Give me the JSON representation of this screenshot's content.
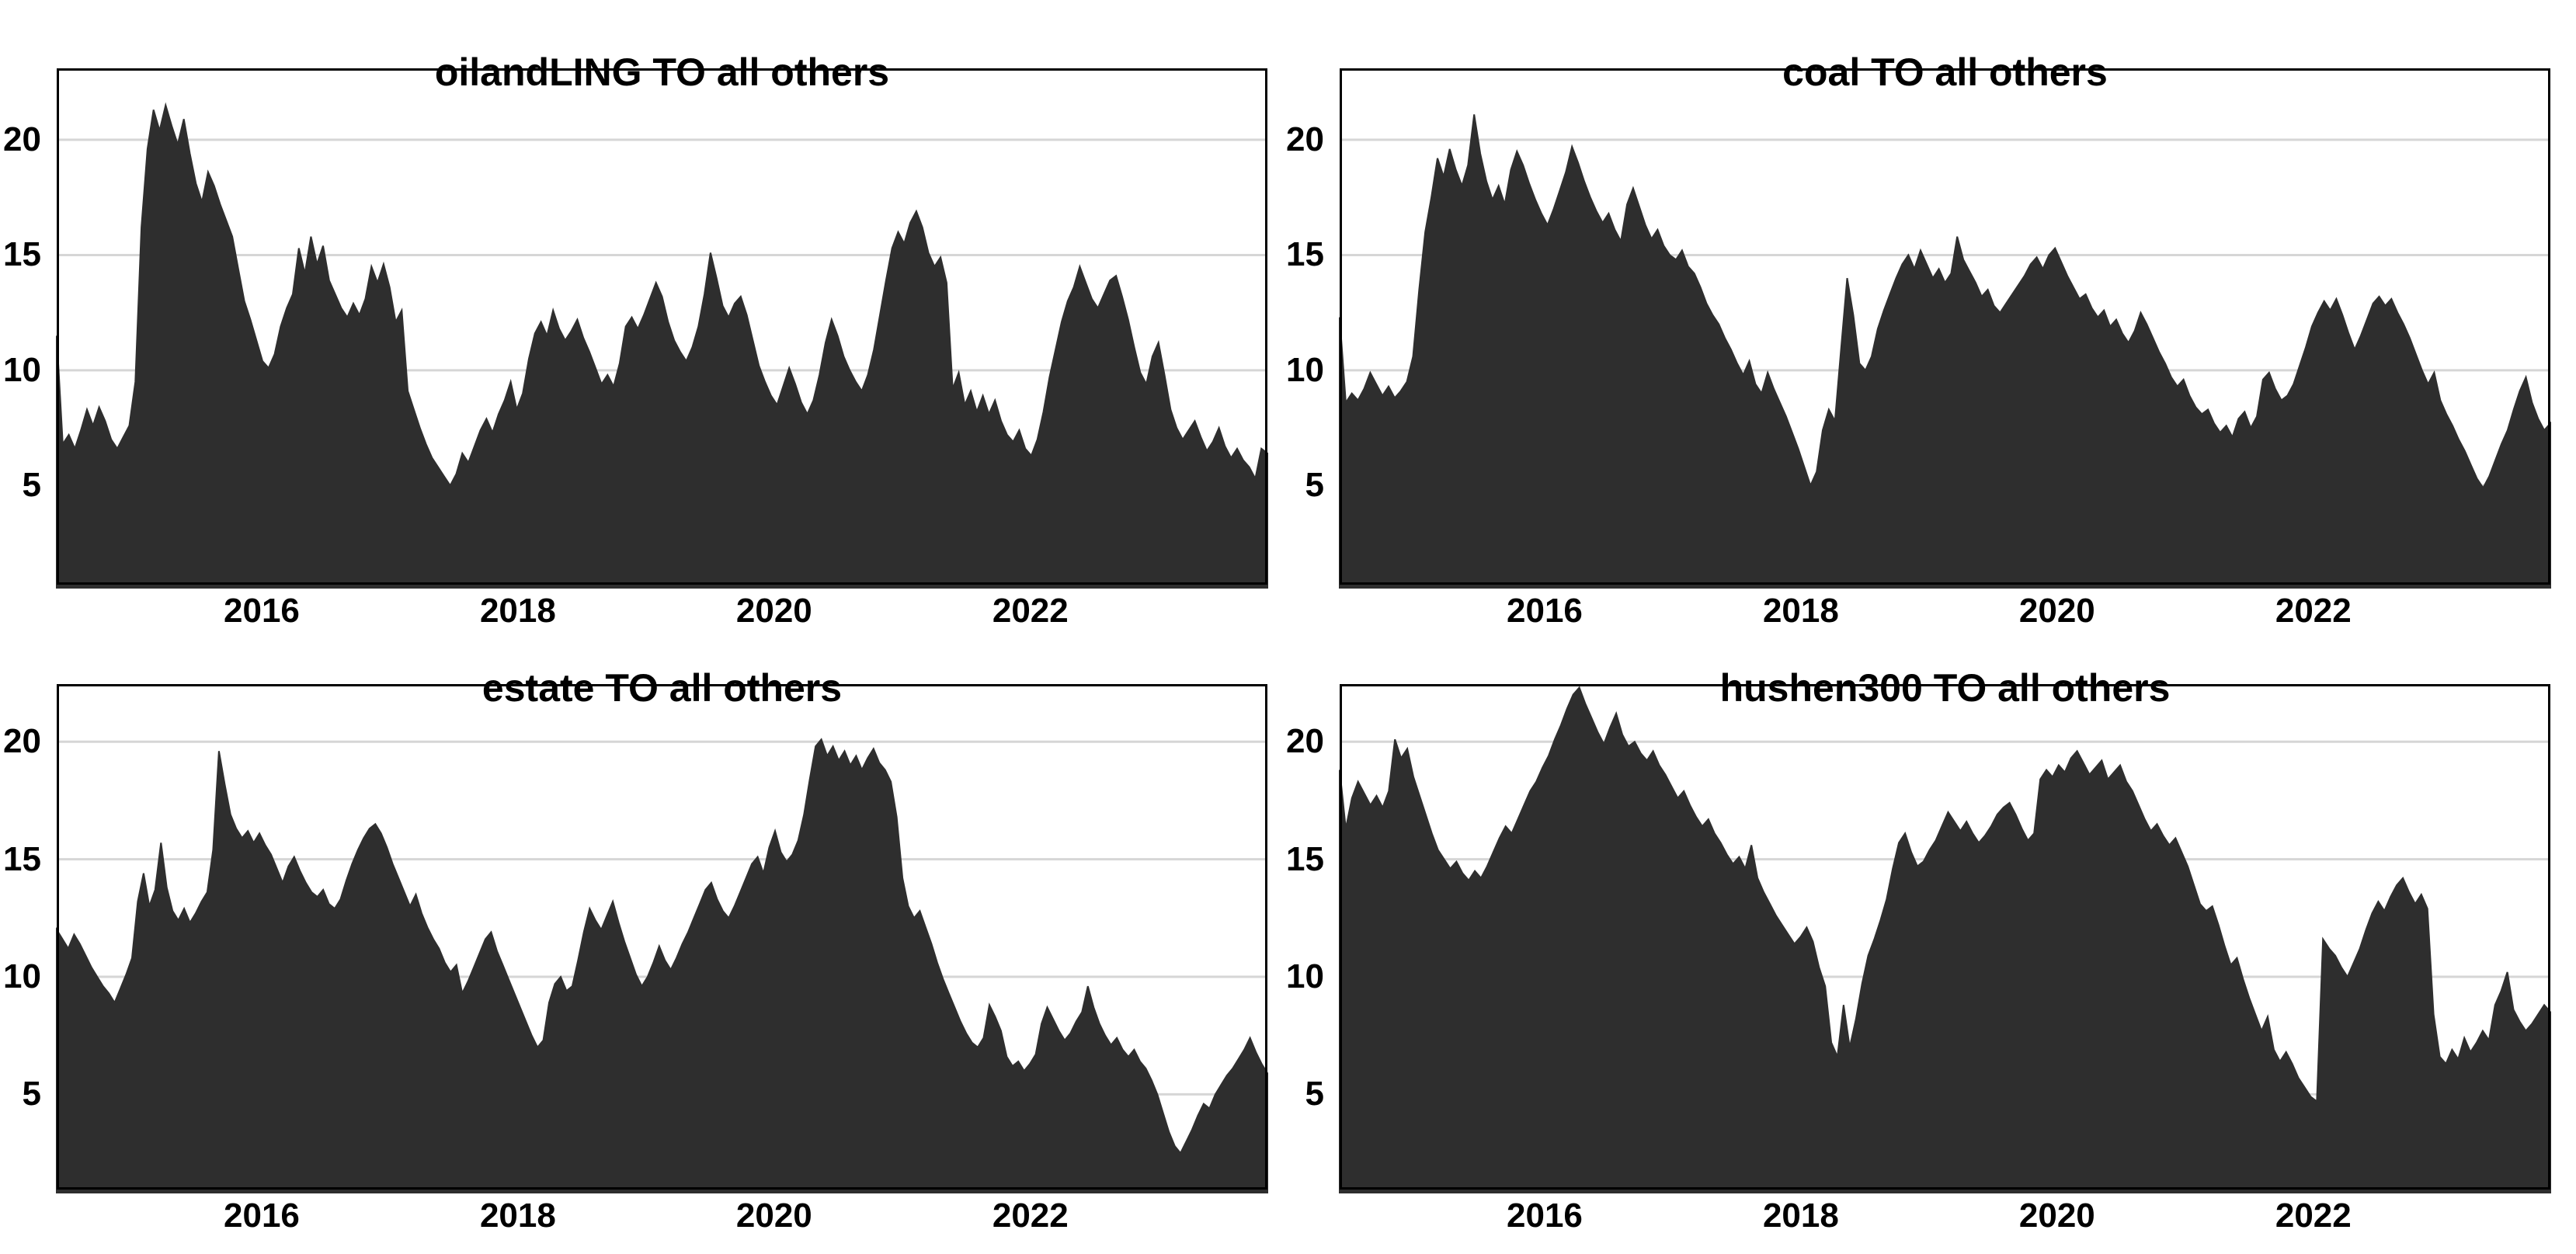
{
  "figure": {
    "background_color": "#ffffff",
    "text_color": "#000000",
    "layout": "2x2-grid"
  },
  "chart_data": [
    {
      "type": "area",
      "title": "oilandLING TO all others",
      "xlabel": "",
      "ylabel": "",
      "x_range": [
        2014.4,
        2023.85
      ],
      "y_range": [
        0.7,
        23.1
      ],
      "x_ticks": [
        2016,
        2018,
        2020,
        2022
      ],
      "x_tick_labels": [
        "2016",
        "2018",
        "2020",
        "2022"
      ],
      "y_ticks": [
        5,
        10,
        15,
        20
      ],
      "y_tick_labels": [
        "5",
        "10",
        "15",
        "20"
      ],
      "grid": "horizontal",
      "legend": "none",
      "fill_color": "#2e2e2e",
      "grid_color": "#d6d6d6",
      "border_color": "#000000",
      "values": [
        11.5,
        6.8,
        7.2,
        6.6,
        7.4,
        8.3,
        7.6,
        8.4,
        7.8,
        7.0,
        6.6,
        7.1,
        7.6,
        9.5,
        16.2,
        19.6,
        21.3,
        20.4,
        21.5,
        20.6,
        19.8,
        20.9,
        19.4,
        18.1,
        17.3,
        18.6,
        18.0,
        17.2,
        16.5,
        15.8,
        14.4,
        13.0,
        12.2,
        11.3,
        10.4,
        10.1,
        10.7,
        11.9,
        12.7,
        13.3,
        15.3,
        14.2,
        15.8,
        14.6,
        15.4,
        13.9,
        13.3,
        12.7,
        12.3,
        12.9,
        12.4,
        13.1,
        14.5,
        13.8,
        14.6,
        13.6,
        12.1,
        12.6,
        9.1,
        8.3,
        7.5,
        6.8,
        6.2,
        5.8,
        5.4,
        5.0,
        5.5,
        6.4,
        6.0,
        6.7,
        7.4,
        7.9,
        7.3,
        8.1,
        8.7,
        9.5,
        8.3,
        9.0,
        10.5,
        11.6,
        12.1,
        11.5,
        12.6,
        11.8,
        11.3,
        11.7,
        12.2,
        11.4,
        10.8,
        10.1,
        9.4,
        9.8,
        9.3,
        10.3,
        11.9,
        12.3,
        11.8,
        12.4,
        13.1,
        13.8,
        13.2,
        12.1,
        11.3,
        10.8,
        10.4,
        11.0,
        11.9,
        13.3,
        15.1,
        14.0,
        12.8,
        12.3,
        12.9,
        13.2,
        12.4,
        11.3,
        10.2,
        9.5,
        8.9,
        8.5,
        9.3,
        10.1,
        9.4,
        8.6,
        8.1,
        8.7,
        9.8,
        11.2,
        12.2,
        11.5,
        10.6,
        10.0,
        9.5,
        9.1,
        9.8,
        10.9,
        12.4,
        13.9,
        15.3,
        16.0,
        15.5,
        16.4,
        16.9,
        16.2,
        15.1,
        14.5,
        14.9,
        13.8,
        9.2,
        9.9,
        8.5,
        9.1,
        8.2,
        8.9,
        8.1,
        8.7,
        7.8,
        7.2,
        6.9,
        7.4,
        6.6,
        6.3,
        7.0,
        8.2,
        9.7,
        10.9,
        12.1,
        13.0,
        13.6,
        14.5,
        13.8,
        13.1,
        12.7,
        13.3,
        13.9,
        14.1,
        13.2,
        12.2,
        11.0,
        9.9,
        9.4,
        10.6,
        11.2,
        9.8,
        8.3,
        7.5,
        7.0,
        7.4,
        7.8,
        7.1,
        6.5,
        6.9,
        7.5,
        6.7,
        6.2,
        6.6,
        6.1,
        5.8,
        5.3,
        6.6,
        6.4
      ]
    },
    {
      "type": "area",
      "title": "coal TO all others",
      "xlabel": "",
      "ylabel": "",
      "x_range": [
        2014.4,
        2023.85
      ],
      "y_range": [
        0.7,
        23.1
      ],
      "x_ticks": [
        2016,
        2018,
        2020,
        2022
      ],
      "x_tick_labels": [
        "2016",
        "2018",
        "2020",
        "2022"
      ],
      "y_ticks": [
        5,
        10,
        15,
        20
      ],
      "y_tick_labels": [
        "5",
        "10",
        "15",
        "20"
      ],
      "grid": "horizontal",
      "legend": "none",
      "fill_color": "#2e2e2e",
      "grid_color": "#d6d6d6",
      "border_color": "#000000",
      "values": [
        12.3,
        8.6,
        9.0,
        8.7,
        9.2,
        9.9,
        9.4,
        8.9,
        9.3,
        8.8,
        9.1,
        9.5,
        10.6,
        13.5,
        16.0,
        17.5,
        19.2,
        18.4,
        19.6,
        18.7,
        18.0,
        18.9,
        21.1,
        19.4,
        18.2,
        17.4,
        18.0,
        17.2,
        18.7,
        19.5,
        18.9,
        18.1,
        17.4,
        16.8,
        16.3,
        17.0,
        17.8,
        18.6,
        19.7,
        19.0,
        18.2,
        17.5,
        16.9,
        16.4,
        16.8,
        16.1,
        15.6,
        17.2,
        17.9,
        17.1,
        16.3,
        15.7,
        16.1,
        15.4,
        15.0,
        14.8,
        15.2,
        14.5,
        14.2,
        13.6,
        12.9,
        12.4,
        12.0,
        11.4,
        10.9,
        10.3,
        9.8,
        10.4,
        9.4,
        9.0,
        9.9,
        9.2,
        8.6,
        8.0,
        7.3,
        6.6,
        5.8,
        5.0,
        5.6,
        7.4,
        8.3,
        7.8,
        10.9,
        14.0,
        12.4,
        10.3,
        10.0,
        10.6,
        11.8,
        12.6,
        13.3,
        14.0,
        14.6,
        15.0,
        14.4,
        15.2,
        14.6,
        14.0,
        14.4,
        13.8,
        14.2,
        15.8,
        14.8,
        14.3,
        13.8,
        13.2,
        13.5,
        12.8,
        12.5,
        12.9,
        13.3,
        13.7,
        14.1,
        14.6,
        14.9,
        14.4,
        15.0,
        15.3,
        14.7,
        14.1,
        13.6,
        13.1,
        13.3,
        12.7,
        12.3,
        12.6,
        11.9,
        12.2,
        11.6,
        11.2,
        11.7,
        12.5,
        12.0,
        11.4,
        10.8,
        10.3,
        9.7,
        9.3,
        9.6,
        8.9,
        8.4,
        8.1,
        8.3,
        7.7,
        7.3,
        7.6,
        7.1,
        7.9,
        8.2,
        7.5,
        8.0,
        9.6,
        9.9,
        9.2,
        8.7,
        8.9,
        9.4,
        10.2,
        11.0,
        11.9,
        12.5,
        13.0,
        12.6,
        13.1,
        12.4,
        11.6,
        10.9,
        11.5,
        12.2,
        12.9,
        13.2,
        12.8,
        13.1,
        12.5,
        12.0,
        11.4,
        10.7,
        10.0,
        9.4,
        9.9,
        8.7,
        8.1,
        7.6,
        7.0,
        6.5,
        5.9,
        5.3,
        4.9,
        5.4,
        6.1,
        6.8,
        7.4,
        8.3,
        9.1,
        9.7,
        8.6,
        7.9,
        7.4,
        7.7
      ]
    },
    {
      "type": "area",
      "title": "estate TO all others",
      "xlabel": "",
      "ylabel": "",
      "x_range": [
        2014.4,
        2023.85
      ],
      "y_range": [
        0.95,
        22.45
      ],
      "x_ticks": [
        2016,
        2018,
        2020,
        2022
      ],
      "x_tick_labels": [
        "2016",
        "2018",
        "2020",
        "2022"
      ],
      "y_ticks": [
        5,
        10,
        15,
        20
      ],
      "y_tick_labels": [
        "5",
        "10",
        "15",
        "20"
      ],
      "grid": "horizontal",
      "legend": "none",
      "fill_color": "#2e2e2e",
      "grid_color": "#d6d6d6",
      "border_color": "#000000",
      "values": [
        12.0,
        11.6,
        11.2,
        11.8,
        11.4,
        10.9,
        10.4,
        10.0,
        9.6,
        9.3,
        8.9,
        9.5,
        10.1,
        10.8,
        13.2,
        14.4,
        13.0,
        13.7,
        15.7,
        13.8,
        12.8,
        12.4,
        12.9,
        12.3,
        12.7,
        13.2,
        13.6,
        15.4,
        19.6,
        18.2,
        16.9,
        16.3,
        15.9,
        16.2,
        15.7,
        16.1,
        15.6,
        15.2,
        14.6,
        14.0,
        14.7,
        15.1,
        14.5,
        14.0,
        13.6,
        13.4,
        13.7,
        13.1,
        12.9,
        13.3,
        14.1,
        14.8,
        15.4,
        15.9,
        16.3,
        16.5,
        16.1,
        15.5,
        14.8,
        14.2,
        13.6,
        13.0,
        13.5,
        12.7,
        12.1,
        11.6,
        11.2,
        10.6,
        10.2,
        10.5,
        9.3,
        9.8,
        10.4,
        11.0,
        11.6,
        11.9,
        11.1,
        10.5,
        9.9,
        9.3,
        8.7,
        8.1,
        7.5,
        7.0,
        7.3,
        8.9,
        9.7,
        10.0,
        9.4,
        9.6,
        10.7,
        11.9,
        12.9,
        12.4,
        12.0,
        12.6,
        13.2,
        12.3,
        11.5,
        10.8,
        10.1,
        9.6,
        10.0,
        10.6,
        11.3,
        10.7,
        10.3,
        10.8,
        11.4,
        11.9,
        12.5,
        13.1,
        13.7,
        14.0,
        13.3,
        12.8,
        12.5,
        13.0,
        13.6,
        14.2,
        14.8,
        15.1,
        14.4,
        15.5,
        16.2,
        15.3,
        14.9,
        15.2,
        15.8,
        16.9,
        18.4,
        19.8,
        20.1,
        19.4,
        19.8,
        19.2,
        19.6,
        19.0,
        19.4,
        18.8,
        19.3,
        19.7,
        19.1,
        18.8,
        18.3,
        16.8,
        14.2,
        13.0,
        12.5,
        12.8,
        12.1,
        11.4,
        10.6,
        9.9,
        9.3,
        8.7,
        8.1,
        7.6,
        7.2,
        7.0,
        7.4,
        8.8,
        8.3,
        7.7,
        6.6,
        6.2,
        6.4,
        6.0,
        6.3,
        6.7,
        8.0,
        8.7,
        8.2,
        7.7,
        7.3,
        7.6,
        8.1,
        8.5,
        9.6,
        8.7,
        8.0,
        7.5,
        7.1,
        7.4,
        6.9,
        6.6,
        6.9,
        6.4,
        6.1,
        5.6,
        5.0,
        4.2,
        3.4,
        2.8,
        2.5,
        3.0,
        3.5,
        4.1,
        4.6,
        4.4,
        5.0,
        5.4,
        5.8,
        6.1,
        6.5,
        6.9,
        7.4,
        6.8,
        6.3,
        5.9
      ]
    },
    {
      "type": "area",
      "title": "hushen300 TO all others",
      "xlabel": "",
      "ylabel": "",
      "x_range": [
        2014.4,
        2023.85
      ],
      "y_range": [
        0.95,
        22.45
      ],
      "x_ticks": [
        2016,
        2018,
        2020,
        2022
      ],
      "x_tick_labels": [
        "2016",
        "2018",
        "2020",
        "2022"
      ],
      "y_ticks": [
        5,
        10,
        15,
        20
      ],
      "y_tick_labels": [
        "5",
        "10",
        "15",
        "20"
      ],
      "grid": "horizontal",
      "legend": "none",
      "fill_color": "#2e2e2e",
      "grid_color": "#d6d6d6",
      "border_color": "#000000",
      "values": [
        18.8,
        16.3,
        17.6,
        18.3,
        17.8,
        17.3,
        17.7,
        17.2,
        17.9,
        20.1,
        19.3,
        19.7,
        18.5,
        17.7,
        16.9,
        16.1,
        15.4,
        15.0,
        14.6,
        14.9,
        14.4,
        14.1,
        14.5,
        14.2,
        14.7,
        15.3,
        15.9,
        16.4,
        16.1,
        16.7,
        17.3,
        17.9,
        18.3,
        18.9,
        19.4,
        20.1,
        20.7,
        21.4,
        22.0,
        22.3,
        21.6,
        21.0,
        20.4,
        19.9,
        20.6,
        21.2,
        20.3,
        19.8,
        20.0,
        19.5,
        19.2,
        19.6,
        19.0,
        18.6,
        18.1,
        17.6,
        17.9,
        17.3,
        16.8,
        16.4,
        16.7,
        16.1,
        15.7,
        15.2,
        14.8,
        15.1,
        14.6,
        15.6,
        14.2,
        13.6,
        13.1,
        12.6,
        12.2,
        11.8,
        11.4,
        11.7,
        12.1,
        11.5,
        10.4,
        9.6,
        7.2,
        6.6,
        8.8,
        7.0,
        8.2,
        9.7,
        10.9,
        11.6,
        12.4,
        13.3,
        14.6,
        15.7,
        16.1,
        15.3,
        14.7,
        14.9,
        15.4,
        15.8,
        16.4,
        17.0,
        16.6,
        16.2,
        16.6,
        16.1,
        15.7,
        16.0,
        16.4,
        16.9,
        17.2,
        17.4,
        16.9,
        16.3,
        15.8,
        16.1,
        18.4,
        18.8,
        18.5,
        19.0,
        18.7,
        19.3,
        19.6,
        19.1,
        18.6,
        18.9,
        19.2,
        18.4,
        18.7,
        19.0,
        18.3,
        17.9,
        17.3,
        16.7,
        16.2,
        16.5,
        16.0,
        15.6,
        15.9,
        15.3,
        14.7,
        13.9,
        13.1,
        12.8,
        13.0,
        12.2,
        11.3,
        10.5,
        10.8,
        9.9,
        9.1,
        8.4,
        7.7,
        8.3,
        6.9,
        6.4,
        6.8,
        6.3,
        5.7,
        5.3,
        4.9,
        4.7,
        11.6,
        11.2,
        10.9,
        10.4,
        10.0,
        10.6,
        11.2,
        12.0,
        12.7,
        13.2,
        12.8,
        13.4,
        13.9,
        14.2,
        13.6,
        13.1,
        13.5,
        12.9,
        8.4,
        6.6,
        6.3,
        6.9,
        6.5,
        7.4,
        6.8,
        7.2,
        7.7,
        7.3,
        8.8,
        9.4,
        10.2,
        8.6,
        8.1,
        7.7,
        8.0,
        8.4,
        8.8,
        8.5
      ]
    }
  ]
}
